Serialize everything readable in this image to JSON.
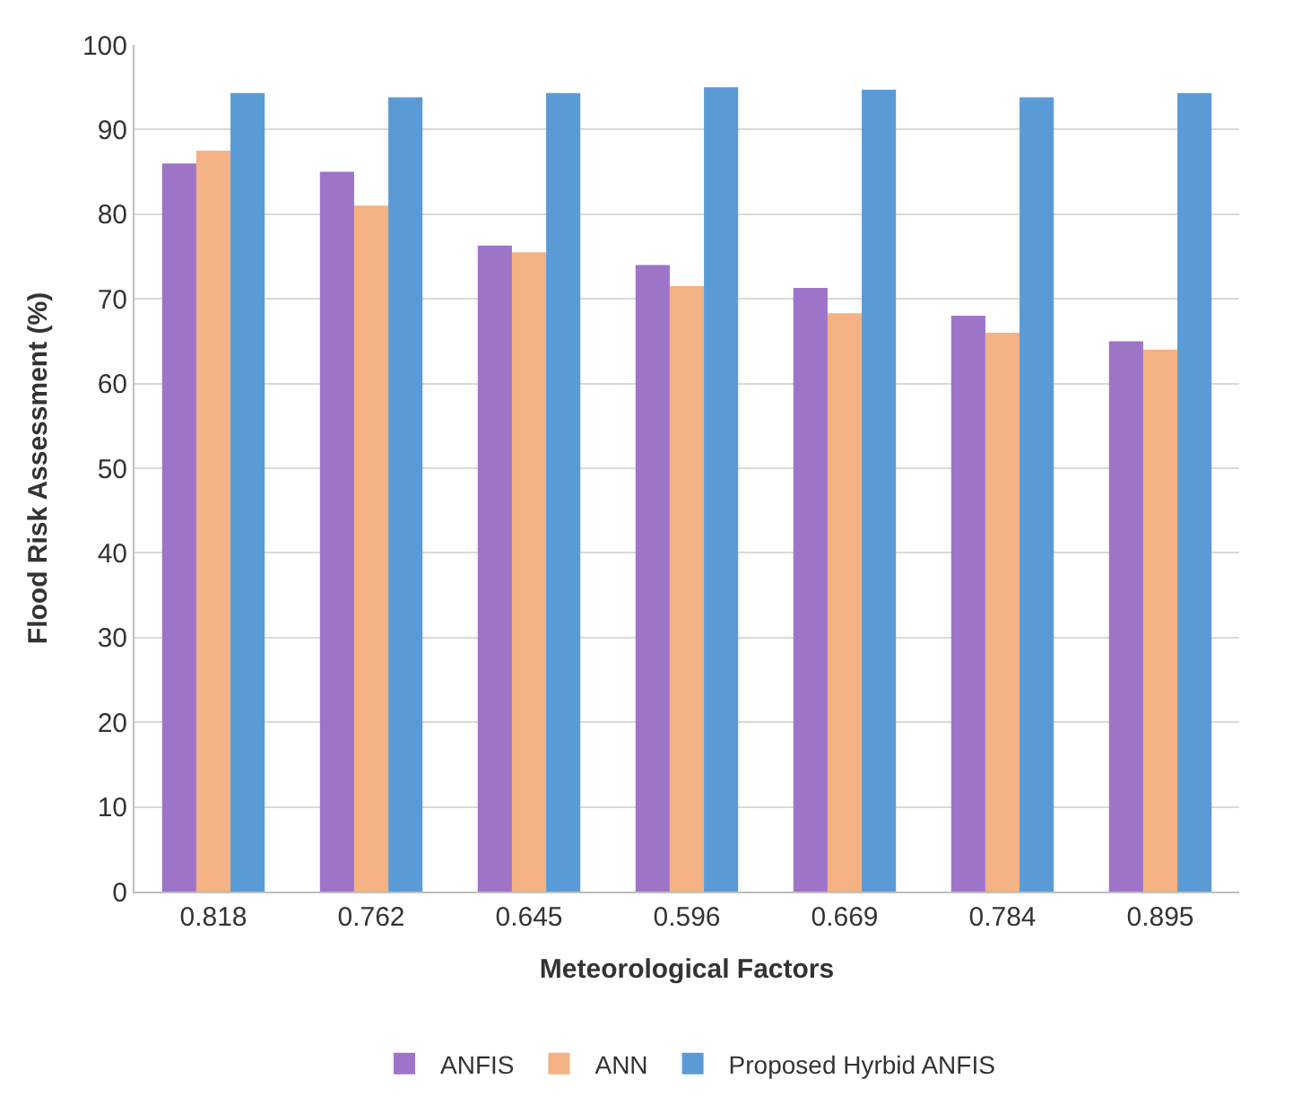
{
  "chart_data": {
    "type": "bar",
    "xlabel": "Meteorological Factors",
    "ylabel": "Flood Risk Assessment (%)",
    "categories": [
      "0.818",
      "0.762",
      "0.645",
      "0.596",
      "0.669",
      "0.784",
      "0.895"
    ],
    "series": [
      {
        "name": "ANFIS",
        "color": "#9e74c9",
        "values": [
          86,
          85,
          76.3,
          74,
          71.3,
          68,
          65
        ]
      },
      {
        "name": "ANN",
        "color": "#f4b183",
        "values": [
          87.5,
          81,
          75.5,
          71.5,
          68.3,
          66,
          64
        ]
      },
      {
        "name": "Proposed Hyrbid ANFIS",
        "color": "#5b9bd5",
        "values": [
          94.3,
          93.8,
          94.3,
          95,
          94.7,
          93.8,
          94.3
        ]
      }
    ],
    "ylim": [
      0,
      100
    ],
    "yticks": [
      0,
      10,
      20,
      30,
      40,
      50,
      60,
      70,
      80,
      90,
      100
    ],
    "grid": "y",
    "legend": "bottom"
  }
}
